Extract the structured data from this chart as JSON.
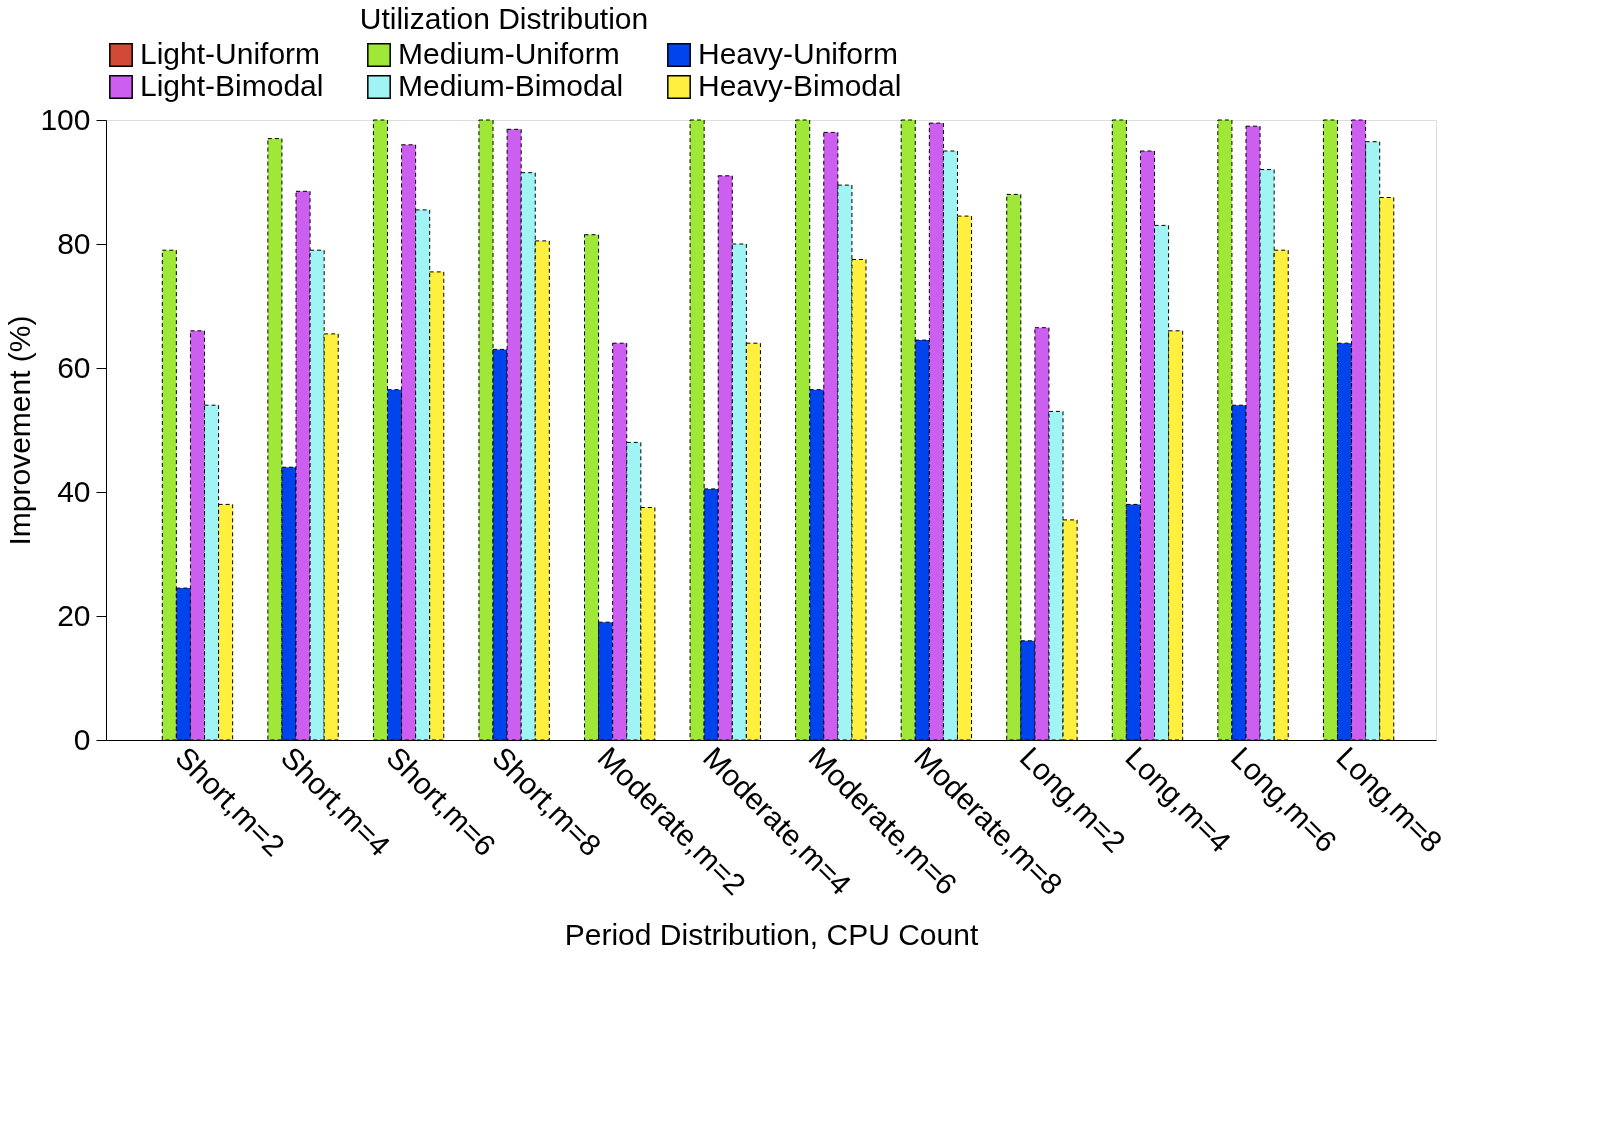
{
  "chart_data": {
    "type": "bar",
    "xlabel": "Period Distribution, CPU Count",
    "ylabel": "Improvement (%)",
    "legend_title": "Utilization Distribution",
    "categories": [
      "Short,m=2",
      "Short,m=4",
      "Short,m=6",
      "Short,m=8",
      "Moderate,m=2",
      "Moderate,m=4",
      "Moderate,m=6",
      "Moderate,m=8",
      "Long,m=2",
      "Long,m=4",
      "Long,m=6",
      "Long,m=8"
    ],
    "series": [
      {
        "name": "Light-Uniform",
        "color": "#d04a35",
        "values": [
          null,
          null,
          null,
          null,
          null,
          null,
          null,
          null,
          null,
          null,
          null,
          null
        ]
      },
      {
        "name": "Medium-Uniform",
        "color": "#a0e838",
        "values": [
          79,
          97,
          100,
          100,
          81.5,
          100,
          100,
          100,
          88,
          100,
          100,
          100
        ]
      },
      {
        "name": "Heavy-Uniform",
        "color": "#0044ee",
        "values": [
          24.5,
          44,
          56.5,
          63,
          19,
          40.5,
          56.5,
          64.5,
          16,
          38,
          54,
          64
        ]
      },
      {
        "name": "Light-Bimodal",
        "color": "#cc5ef0",
        "values": [
          66,
          88.5,
          96,
          98.5,
          64,
          91,
          98,
          99.5,
          66.5,
          95,
          99,
          100
        ]
      },
      {
        "name": "Medium-Bimodal",
        "color": "#a0f4f4",
        "values": [
          54,
          79,
          85.5,
          91.5,
          48,
          80,
          89.5,
          95,
          53,
          83,
          92,
          96.5
        ]
      },
      {
        "name": "Heavy-Bimodal",
        "color": "#fff040",
        "values": [
          38,
          65.5,
          75.5,
          80.5,
          37.5,
          64,
          77.5,
          84.5,
          35.5,
          66,
          79,
          87.5
        ]
      }
    ],
    "ylim": [
      0,
      100
    ],
    "yticks": [
      0,
      20,
      40,
      60,
      80,
      100
    ],
    "grid": false,
    "legend": "top"
  }
}
